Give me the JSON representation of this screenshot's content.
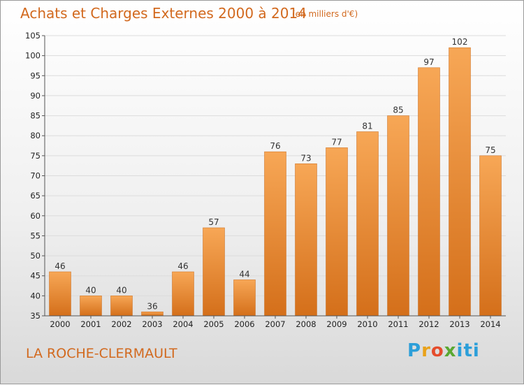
{
  "title": "Achats et Charges Externes 2000 à 2014",
  "unit": "(en milliers d'€)",
  "location": "LA ROCHE-CLERMAULT",
  "logo": "Proxiti",
  "chart_data": {
    "type": "bar",
    "categories": [
      "2000",
      "2001",
      "2002",
      "2003",
      "2004",
      "2005",
      "2006",
      "2007",
      "2008",
      "2009",
      "2010",
      "2011",
      "2012",
      "2013",
      "2014"
    ],
    "values": [
      46,
      40,
      40,
      36,
      46,
      57,
      44,
      76,
      73,
      77,
      81,
      85,
      97,
      102,
      75
    ],
    "ylim": [
      35,
      105
    ],
    "yticks": [
      35,
      40,
      45,
      50,
      55,
      60,
      65,
      70,
      75,
      80,
      85,
      90,
      95,
      100,
      105
    ],
    "grid": true,
    "bar_color": "#f0963f"
  }
}
